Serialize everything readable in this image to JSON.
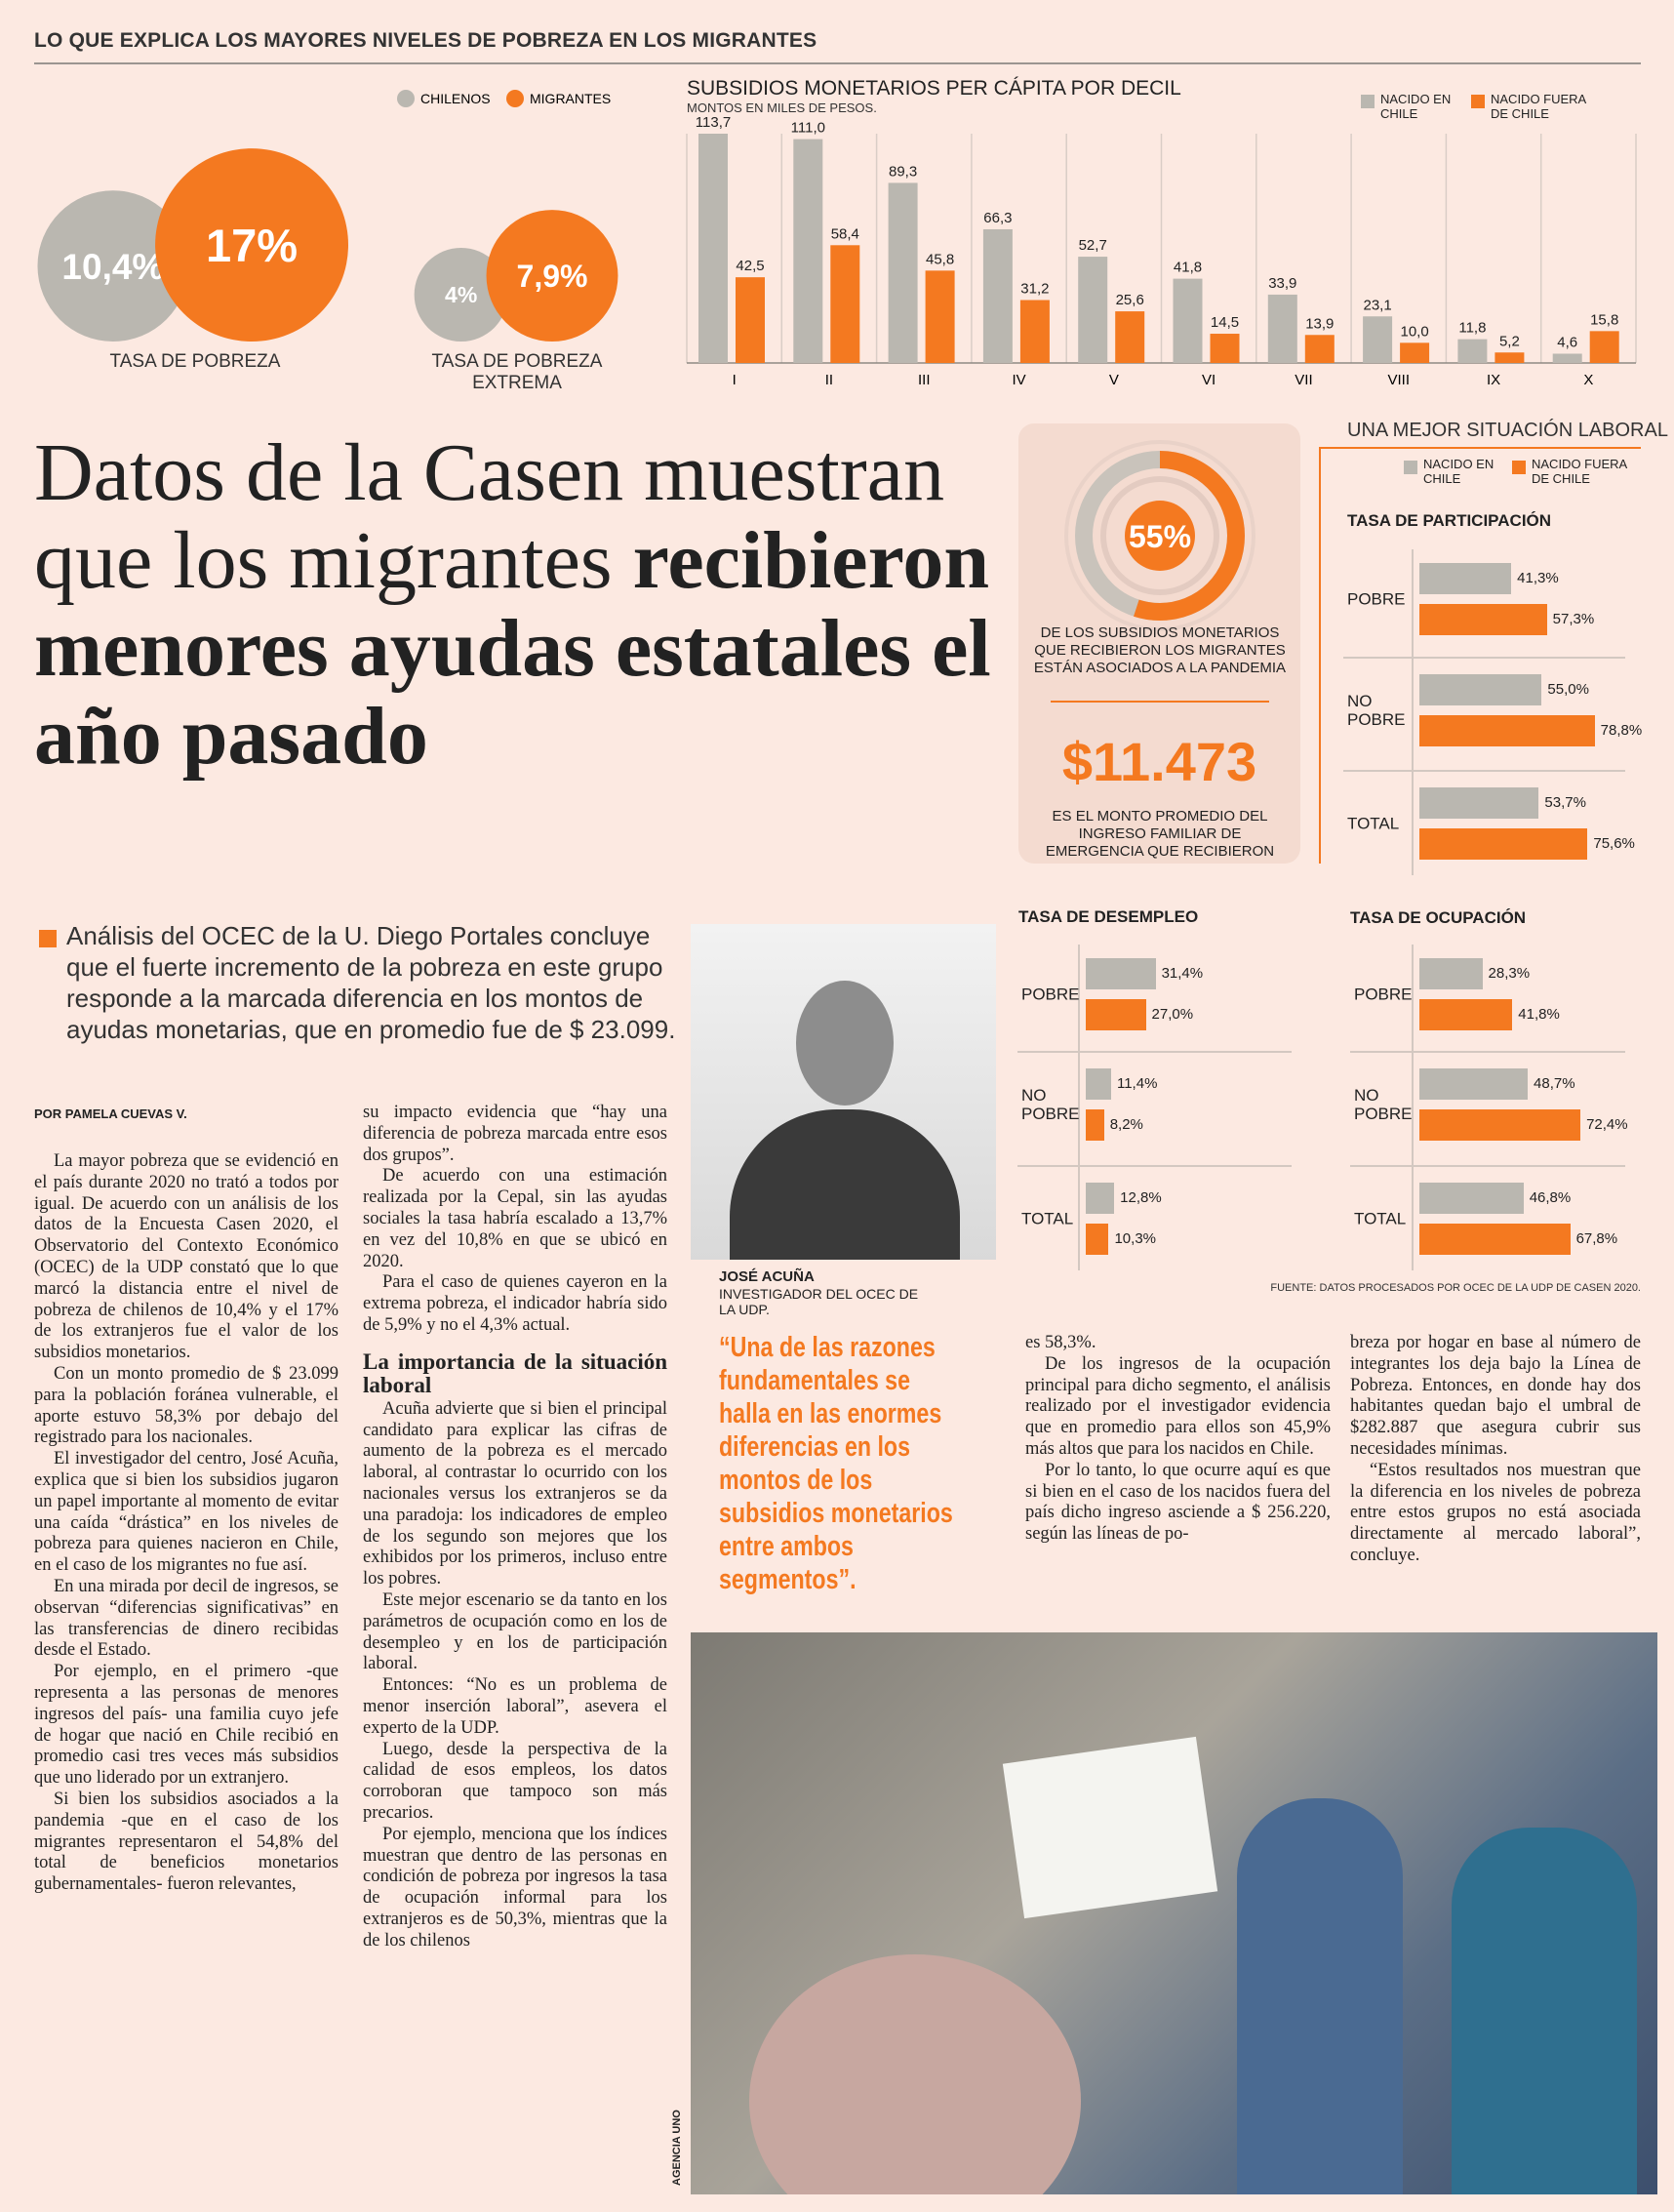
{
  "header": {
    "kicker": "LO QUE EXPLICA LOS MAYORES NIVELES DE POBREZA EN LOS MIGRANTES"
  },
  "chart_data": [
    {
      "type": "bubble",
      "categories": [
        "TASA DE POBREZA",
        "TASA DE POBREZA EXTREMA"
      ],
      "series": [
        {
          "name": "CHILENOS",
          "color": "#bab7b0",
          "values": [
            10.4,
            4
          ],
          "value_labels": [
            "10,4%",
            "4%"
          ]
        },
        {
          "name": "MIGRANTES",
          "color": "#f47920",
          "values": [
            17,
            7.9
          ],
          "value_labels": [
            "17%",
            "7,9%"
          ]
        }
      ]
    },
    {
      "type": "bar",
      "title": "SUBSIDIOS MONETARIOS PER CÁPITA POR DECIL",
      "subtitle": "MONTOS EN MILES DE PESOS.",
      "categories": [
        "I",
        "II",
        "III",
        "IV",
        "V",
        "VI",
        "VII",
        "VIII",
        "IX",
        "X"
      ],
      "series": [
        {
          "name": "NACIDO EN CHILE",
          "color": "#bab7b0",
          "values": [
            113.7,
            111.0,
            89.3,
            66.3,
            52.7,
            41.8,
            33.9,
            23.1,
            11.8,
            4.6
          ],
          "value_labels": [
            "113,7",
            "111,0",
            "89,3",
            "66,3",
            "52,7",
            "41,8",
            "33,9",
            "23,1",
            "11,8",
            "4,6"
          ]
        },
        {
          "name": "NACIDO FUERA DE CHILE",
          "color": "#f47920",
          "values": [
            42.5,
            58.4,
            45.8,
            31.2,
            25.6,
            14.5,
            13.9,
            10.0,
            5.2,
            15.8
          ],
          "value_labels": [
            "42,5",
            "58,4",
            "45,8",
            "31,2",
            "25,6",
            "14,5",
            "13,9",
            "10,0",
            "5,2",
            "15,8"
          ]
        }
      ]
    },
    {
      "type": "donut",
      "values": [
        55
      ],
      "value_labels": [
        "55%"
      ],
      "color": "#f47920",
      "caption": "DE LOS SUBSIDIOS MONETARIOS QUE RECIBIERON LOS MIGRANTES ESTÁN ASOCIADOS A LA PANDEMIA",
      "amount": "$11.473",
      "amount_caption": "ES EL MONTO PROMEDIO DEL INGRESO FAMILIAR DE EMERGENCIA QUE RECIBIERON"
    },
    {
      "type": "hbar",
      "title": "TASA DE PARTICIPACIÓN",
      "categories": [
        "POBRE",
        "NO POBRE",
        "TOTAL"
      ],
      "series": [
        {
          "name": "NACIDO EN CHILE",
          "color": "#bab7b0",
          "values": [
            41.3,
            55.0,
            53.7
          ],
          "value_labels": [
            "41,3%",
            "55,0%",
            "53,7%"
          ]
        },
        {
          "name": "NACIDO FUERA DE CHILE",
          "color": "#f47920",
          "values": [
            57.3,
            78.8,
            75.6
          ],
          "value_labels": [
            "57,3%",
            "78,8%",
            "75,6%"
          ]
        }
      ]
    },
    {
      "type": "hbar",
      "title": "TASA DE DESEMPLEO",
      "categories": [
        "POBRE",
        "NO POBRE",
        "TOTAL"
      ],
      "series": [
        {
          "color": "#bab7b0",
          "values": [
            31.4,
            11.4,
            12.8
          ],
          "value_labels": [
            "31,4%",
            "11,4%",
            "12,8%"
          ]
        },
        {
          "color": "#f47920",
          "values": [
            27.0,
            8.2,
            10.3
          ],
          "value_labels": [
            "27,0%",
            "8,2%",
            "10,3%"
          ]
        }
      ]
    },
    {
      "type": "hbar",
      "title": "TASA DE OCUPACIÓN",
      "categories": [
        "POBRE",
        "NO POBRE",
        "TOTAL"
      ],
      "series": [
        {
          "color": "#bab7b0",
          "values": [
            28.3,
            48.7,
            46.8
          ],
          "value_labels": [
            "28,3%",
            "48,7%",
            "46,8%"
          ]
        },
        {
          "color": "#f47920",
          "values": [
            41.8,
            72.4,
            67.8
          ],
          "value_labels": [
            "41,8%",
            "72,4%",
            "67,8%"
          ]
        }
      ]
    }
  ],
  "labor_title": "UNA MEJOR SITUACIÓN LABORAL",
  "source": "FUENTE: DATOS PROCESADOS POR OCEC DE LA UDP DE CASEN 2020.",
  "article": {
    "headline_light": "Datos de la Casen muestran que los migrantes",
    "headline_bold": "recibieron menores ayudas estatales el año pasado",
    "dek": "Análisis del OCEC de la U. Diego Portales concluye que el fuerte incremento de la pobreza en este grupo responde a la marcada diferencia en los montos de ayudas monetarias, que en promedio fue de $ 23.099.",
    "byline": "POR PAMELA CUEVAS V.",
    "column1": [
      "La mayor pobreza que se evidenció en el país durante 2020 no trató a todos por igual. De acuerdo con un análisis de los datos de la Encuesta Casen 2020, el Observatorio del Contexto Económico (OCEC) de la UDP constató que lo que marcó la distancia entre el nivel de pobreza de chilenos de 10,4% y el 17% de los extranjeros fue el valor de los subsidios monetarios.",
      "Con un monto promedio de $ 23.099 para la población foránea vulnerable, el aporte estuvo 58,3% por debajo del registrado para los nacionales.",
      "El investigador del centro, José Acuña, explica que si bien los subsidios jugaron un papel importante al momento de evitar una caída “drástica” en los niveles de pobreza para quienes nacieron en Chile, en el caso de los migrantes no fue así.",
      "En una mirada por decil de ingresos, se observan “diferencias significativas” en las transferencias de dinero recibidas desde el Estado.",
      "Por ejemplo, en el primero -que representa a las personas de menores ingresos del país- una familia cuyo jefe de hogar que nació en Chile recibió en promedio casi tres veces más subsidios que uno liderado por un extranjero.",
      "Si bien los subsidios asociados a la pandemia -que en el caso de los migrantes representaron el 54,8% del total de beneficios monetarios gubernamentales- fueron relevantes,"
    ],
    "column2": [
      "su impacto evidencia que “hay una diferencia de pobreza marcada entre esos dos grupos”.",
      "De acuerdo con una estimación realizada por la Cepal, sin las ayudas sociales la tasa habría escalado a 13,7% en vez del 10,8% en que se ubicó en 2020.",
      "Para el caso de quienes cayeron en la extrema pobreza, el indicador habría sido de 5,9% y no el 4,3% actual."
    ],
    "subhead": "La importancia de la situación laboral",
    "column2b": [
      "Acuña advierte que si bien el principal candidato para explicar las cifras de aumento de la pobreza es el mercado laboral, al contrastar lo ocurrido con los nacionales versus los extranjeros se da una paradoja: los indicadores de empleo de los segundo son mejores que los exhibidos por los primeros, incluso entre los pobres.",
      "Este mejor escenario se da tanto en los parámetros de ocupación como en los de desempleo y en los de participación laboral.",
      "Entonces: “No es un problema de menor inserción laboral”, asevera el experto de la UDP.",
      "Luego, desde la perspectiva de la calidad de esos empleos, los datos corroboran que tampoco son más precarios.",
      "Por ejemplo, menciona que los índices muestran que dentro de las personas en condición de pobreza por ingresos la tasa de ocupación informal para los extranjeros es de 50,3%, mientras que la de los chilenos"
    ],
    "column3": [
      "es 58,3%.",
      "De los ingresos de la ocupación principal para dicho segmento, el análisis realizado por el investigador evidencia que en promedio para ellos son 45,9% más altos que para los nacidos en Chile.",
      "Por lo tanto, lo que ocurre aquí es que si bien en el caso de los nacidos fuera del país dicho ingreso asciende a $ 256.220, según las líneas de po-"
    ],
    "column4": [
      "breza por hogar en base al número de integrantes los deja bajo la Línea de Pobreza. Entonces, en donde hay dos habitantes quedan bajo el umbral de $282.887 que asegura cubrir sus necesidades mínimas.",
      "“Estos resultados nos muestran que la diferencia en los niveles de pobreza entre estos grupos no está asociada directamente al mercado laboral”, concluye."
    ],
    "photo_name": "JOSÉ ACUÑA",
    "photo_role": "INVESTIGADOR DEL OCEC DE LA UDP.",
    "quote": "“Una de las razones fundamentales se halla en las enormes diferencias en los montos de los subsidios monetarios entre ambos segmentos”.",
    "credit": "AGENCIA UNO"
  }
}
